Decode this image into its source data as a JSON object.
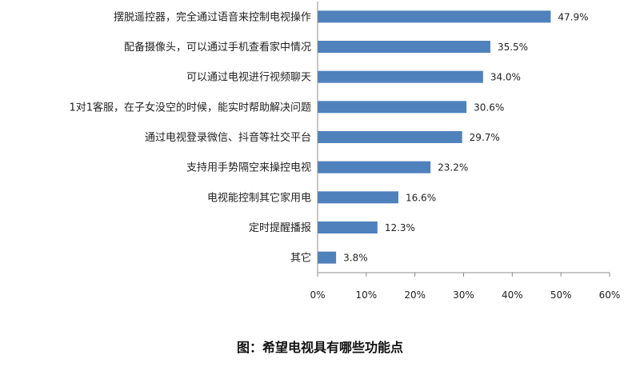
{
  "caption": "图：希望电视具有哪些功能点",
  "chart_data": {
    "type": "bar",
    "orientation": "horizontal",
    "categories": [
      "摆脱遥控器，完全通过语音来控制电视操作",
      "配备摄像头，可以通过手机查看家中情况",
      "可以通过电视进行视频聊天",
      "1对1客服，在子女没空的时候，能实时帮助解决问题",
      "通过电视登录微信、抖音等社交平台",
      "支持用手势隔空来操控电视",
      "电视能控制其它家用电",
      "定时提醒播报",
      "其它"
    ],
    "values": [
      47.9,
      35.5,
      34.0,
      30.6,
      29.7,
      23.2,
      16.6,
      12.3,
      3.8
    ],
    "value_labels": [
      "47.9%",
      "35.5%",
      "34.0%",
      "30.6%",
      "29.7%",
      "23.2%",
      "16.6%",
      "12.3%",
      "3.8%"
    ],
    "xlim": [
      0,
      60
    ],
    "x_ticks": [
      "0%",
      "10%",
      "20%",
      "30%",
      "40%",
      "50%",
      "60%"
    ],
    "grid": false,
    "legend": "none",
    "bar_color": "#4F81BD"
  }
}
